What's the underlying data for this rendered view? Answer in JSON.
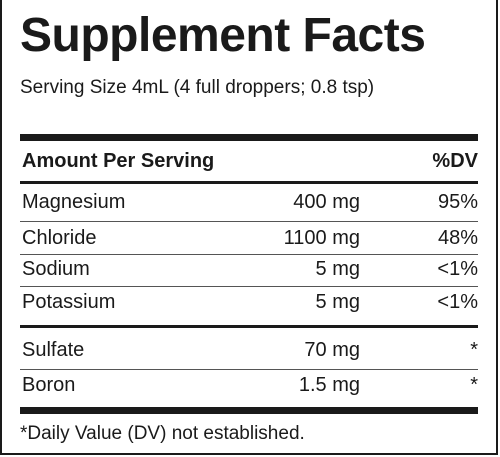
{
  "title": "Supplement Facts",
  "serving_size": "Serving Size 4mL (4 full droppers; 0.8 tsp)",
  "header": {
    "amount_label": "Amount Per Serving",
    "dv_label": "%DV"
  },
  "nutrients": [
    {
      "name": "Magnesium",
      "amount": "400 mg",
      "dv": "95%"
    },
    {
      "name": "Chloride",
      "amount": "1100 mg",
      "dv": "48%"
    },
    {
      "name": "Sodium",
      "amount": "5 mg",
      "dv": "<1%"
    },
    {
      "name": "Potassium",
      "amount": "5 mg",
      "dv": "<1%"
    },
    {
      "name": "Sulfate",
      "amount": "70 mg",
      "dv": "*"
    },
    {
      "name": "Boron",
      "amount": "1.5 mg",
      "dv": "*"
    }
  ],
  "footnote": "*Daily Value (DV) not established."
}
